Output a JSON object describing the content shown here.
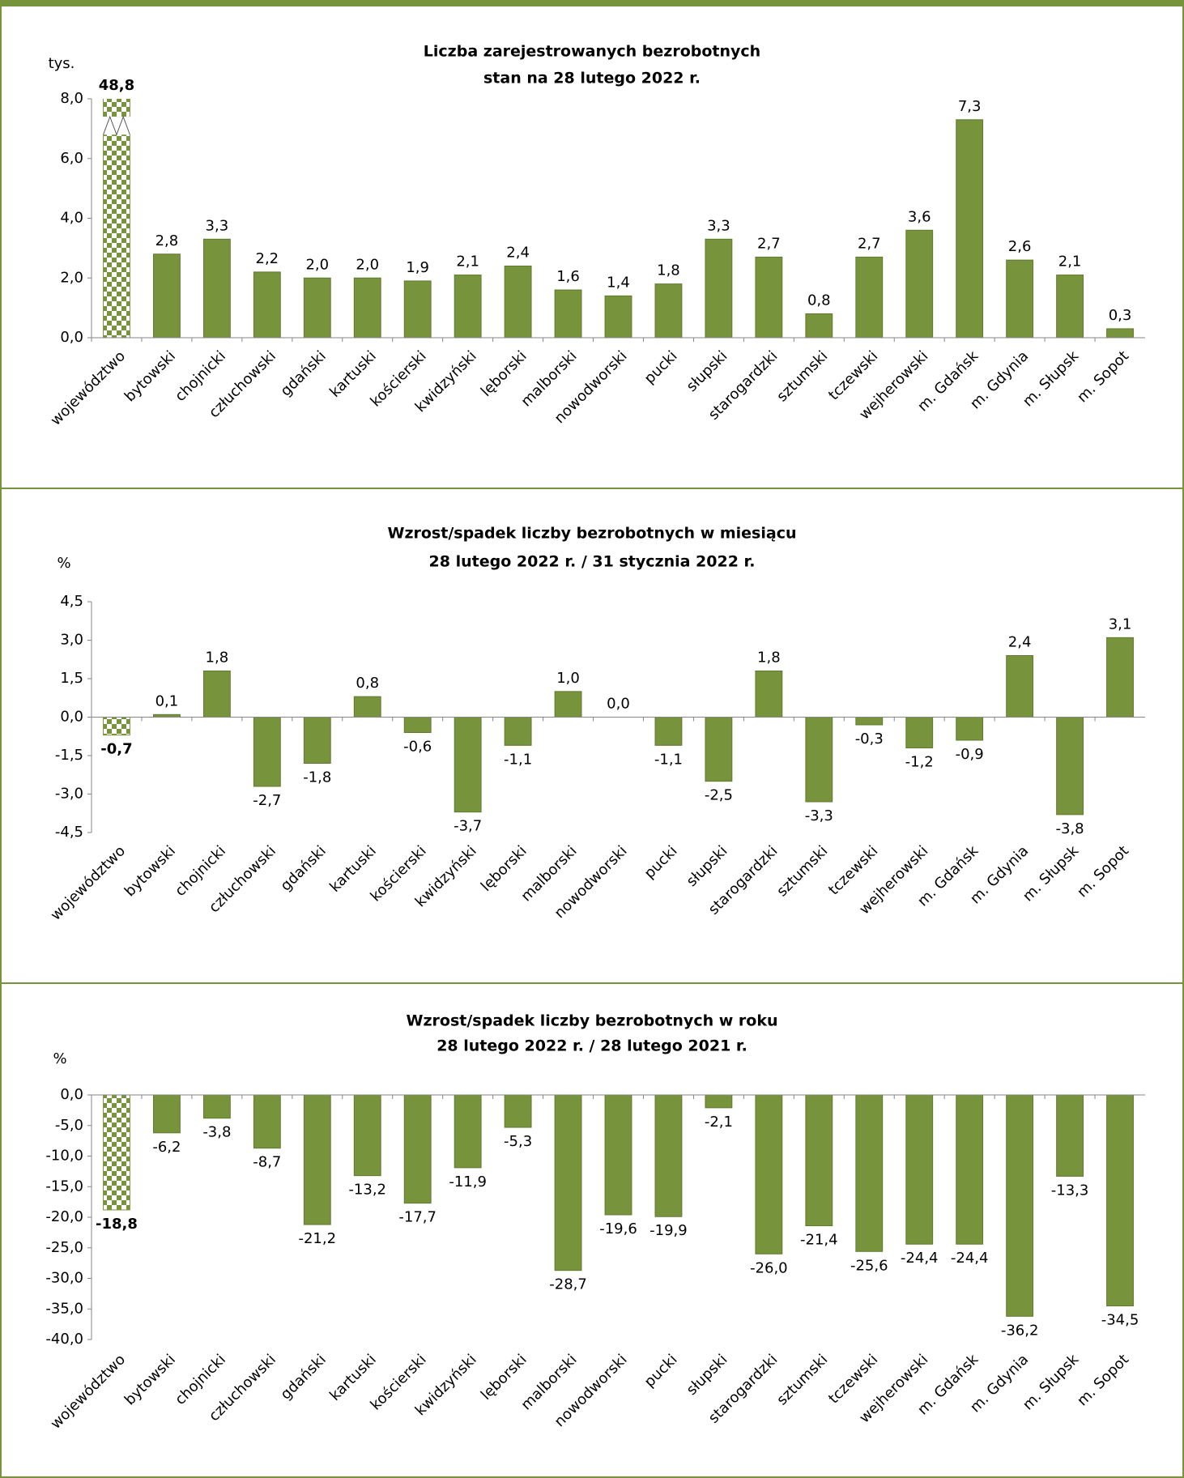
{
  "chart_data": [
    {
      "type": "bar",
      "title": "Liczba zarejestrowanych bezrobotnych",
      "subtitle": "stan na 28 lutego 2022 r.",
      "y_label": "tys.",
      "categories": [
        "województwo",
        "bytowski",
        "chojnicki",
        "człuchowski",
        "gdański",
        "kartuski",
        "kościerski",
        "kwidzyński",
        "lęborski",
        "malborski",
        "nowodworski",
        "pucki",
        "słupski",
        "starogardzki",
        "sztumski",
        "tczewski",
        "wejherowski",
        "m. Gdańsk",
        "m. Gdynia",
        "m. Słupsk",
        "m. Sopot"
      ],
      "values": [
        48.8,
        2.8,
        3.3,
        2.2,
        2.0,
        2.0,
        1.9,
        2.1,
        2.4,
        1.6,
        1.4,
        1.8,
        3.3,
        2.7,
        0.8,
        2.7,
        3.6,
        7.3,
        2.6,
        2.1,
        0.3
      ],
      "value_labels": [
        "48,8",
        "2,8",
        "3,3",
        "2,2",
        "2,0",
        "2,0",
        "1,9",
        "2,1",
        "2,4",
        "1,6",
        "1,4",
        "1,8",
        "3,3",
        "2,7",
        "0,8",
        "2,7",
        "3,6",
        "7,3",
        "2,6",
        "2,1",
        "0,3"
      ],
      "color": "#77933c",
      "ylim": [
        0,
        8
      ],
      "yticks": [
        {
          "value": 0,
          "label": "0,0"
        },
        {
          "value": 2,
          "label": "2,0"
        },
        {
          "value": 4,
          "label": "4,0"
        },
        {
          "value": 6,
          "label": "6,0"
        },
        {
          "value": 8,
          "label": "8,0"
        }
      ]
    },
    {
      "type": "bar",
      "title": "Wzrost/spadek liczby bezrobotnych w miesiącu",
      "subtitle": "28 lutego 2022 r. / 31 stycznia 2022 r.",
      "y_label": "%",
      "categories": [
        "województwo",
        "bytowski",
        "chojnicki",
        "człuchowski",
        "gdański",
        "kartuski",
        "kościerski",
        "kwidzyński",
        "lęborski",
        "malborski",
        "nowodworski",
        "pucki",
        "słupski",
        "starogardzki",
        "sztumski",
        "tczewski",
        "wejherowski",
        "m. Gdańsk",
        "m. Gdynia",
        "m. Słupsk",
        "m. Sopot"
      ],
      "values": [
        -0.7,
        0.1,
        1.8,
        -2.7,
        -1.8,
        0.8,
        -0.6,
        -3.7,
        -1.1,
        1.0,
        0.0,
        -1.1,
        -2.5,
        1.8,
        -3.3,
        -0.3,
        -1.2,
        -0.9,
        2.4,
        -3.8,
        3.1
      ],
      "value_labels": [
        "-0,7",
        "0,1",
        "1,8",
        "-2,7",
        "-1,8",
        "0,8",
        "-0,6",
        "-3,7",
        "-1,1",
        "1,0",
        "0,0",
        "-1,1",
        "-2,5",
        "1,8",
        "-3,3",
        "-0,3",
        "-1,2",
        "-0,9",
        "2,4",
        "-3,8",
        "3,1"
      ],
      "color": "#77933c",
      "ylim": [
        -4.5,
        4.5
      ],
      "yticks": [
        {
          "value": -4.5,
          "label": "-4,5"
        },
        {
          "value": -3,
          "label": "-3,0"
        },
        {
          "value": -1.5,
          "label": "-1,5"
        },
        {
          "value": 0,
          "label": "0,0"
        },
        {
          "value": 1.5,
          "label": "1,5"
        },
        {
          "value": 3,
          "label": "3,0"
        },
        {
          "value": 4.5,
          "label": "4,5"
        }
      ]
    },
    {
      "type": "bar",
      "title": "Wzrost/spadek liczby bezrobotnych w roku",
      "subtitle": "28 lutego 2022 r. / 28 lutego 2021 r.",
      "y_label": "%",
      "categories": [
        "województwo",
        "bytowski",
        "chojnicki",
        "człuchowski",
        "gdański",
        "kartuski",
        "kościerski",
        "kwidzyński",
        "lęborski",
        "malborski",
        "nowodworski",
        "pucki",
        "słupski",
        "starogardzki",
        "sztumski",
        "tczewski",
        "wejherowski",
        "m. Gdańsk",
        "m. Gdynia",
        "m. Słupsk",
        "m. Sopot"
      ],
      "values": [
        -18.8,
        -6.2,
        -3.8,
        -8.7,
        -21.2,
        -13.2,
        -17.7,
        -11.9,
        -5.3,
        -28.7,
        -19.6,
        -19.9,
        -2.1,
        -26.0,
        -21.4,
        -25.6,
        -24.4,
        -24.4,
        -36.2,
        -13.3,
        -34.5
      ],
      "value_labels": [
        "-18,8",
        "-6,2",
        "-3,8",
        "-8,7",
        "-21,2",
        "-13,2",
        "-17,7",
        "-11,9",
        "-5,3",
        "-28,7",
        "-19,6",
        "-19,9",
        "-2,1",
        "-26,0",
        "-21,4",
        "-25,6",
        "-24,4",
        "-24,4",
        "-36,2",
        "-13,3",
        "-34,5"
      ],
      "color": "#77933c",
      "ylim": [
        -40,
        0
      ],
      "yticks": [
        {
          "value": -40,
          "label": "-40,0"
        },
        {
          "value": -35,
          "label": "-35,0"
        },
        {
          "value": -30,
          "label": "-30,0"
        },
        {
          "value": -25,
          "label": "-25,0"
        },
        {
          "value": -20,
          "label": "-20,0"
        },
        {
          "value": -15,
          "label": "-15,0"
        },
        {
          "value": -10,
          "label": "-10,0"
        },
        {
          "value": -5,
          "label": "-5,0"
        },
        {
          "value": 0,
          "label": "0,0"
        }
      ]
    }
  ]
}
